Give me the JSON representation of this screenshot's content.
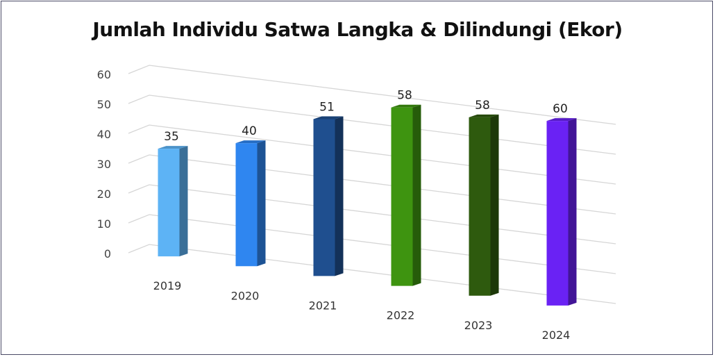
{
  "chart_data": {
    "type": "bar",
    "title": "Jumlah Individu Satwa Langka & Dilindungi (Ekor)",
    "categories": [
      "2019",
      "2020",
      "2021",
      "2022",
      "2023",
      "2024"
    ],
    "values": [
      35,
      40,
      51,
      58,
      58,
      60
    ],
    "data_labels": [
      "35",
      "40",
      "51",
      "58",
      "58",
      "60"
    ],
    "ylim": [
      0,
      60
    ],
    "yticks": [
      "0",
      "10",
      "20",
      "30",
      "40",
      "50",
      "60"
    ],
    "grid": true,
    "legend": "none",
    "colors": [
      "#5db3f5",
      "#2f86f0",
      "#1f4f8f",
      "#3e9410",
      "#2e5a0e",
      "#6a22f4"
    ]
  }
}
